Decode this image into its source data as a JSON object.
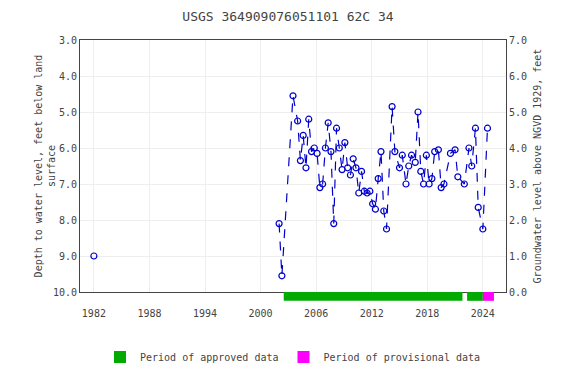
{
  "chart_data": {
    "type": "line",
    "title": "USGS 364909076051101 62C 34",
    "y_label": "Depth to water level, feet below land\nsurface",
    "y2_label": "Groundwater level above NGVD 1929, feet",
    "xlim": [
      1980.5,
      2026.5
    ],
    "xticks": [
      1982,
      1988,
      1994,
      2000,
      2006,
      2012,
      2018,
      2024
    ],
    "ylim": [
      10.0,
      3.0
    ],
    "yticks": [
      {
        "value": 3.0,
        "label": "3.0"
      },
      {
        "value": 4.0,
        "label": "4.0"
      },
      {
        "value": 5.0,
        "label": "5.0"
      },
      {
        "value": 6.0,
        "label": "6.0"
      },
      {
        "value": 7.0,
        "label": "7.0"
      },
      {
        "value": 8.0,
        "label": "8.0"
      },
      {
        "value": 9.0,
        "label": "9.0"
      },
      {
        "value": 10.0,
        "label": "10.0"
      }
    ],
    "y2lim": [
      0.0,
      7.0
    ],
    "y2ticks": [
      {
        "value": 0.0,
        "label": "0.0"
      },
      {
        "value": 1.0,
        "label": "1.0"
      },
      {
        "value": 2.0,
        "label": "2.0"
      },
      {
        "value": 3.0,
        "label": "3.0"
      },
      {
        "value": 4.0,
        "label": "4.0"
      },
      {
        "value": 5.0,
        "label": "5.0"
      },
      {
        "value": 6.0,
        "label": "6.0"
      },
      {
        "value": 7.0,
        "label": "7.0"
      }
    ],
    "grid": true,
    "legend": "bottom",
    "series": [
      {
        "color": "#0000CC",
        "line_style": "dashed",
        "marker": "open_circle",
        "x": [
          1982.0
        ],
        "values": [
          9.0
        ]
      },
      {
        "color": "#0000CC",
        "line_style": "dashed",
        "marker": "open_circle",
        "x": [
          2002.0,
          2002.3,
          2003.5,
          2004.0,
          2004.3,
          2004.6,
          2004.9,
          2005.2,
          2005.5,
          2005.8,
          2006.1,
          2006.4,
          2006.7,
          2007.0,
          2007.3,
          2007.6,
          2007.9,
          2008.2,
          2008.5,
          2008.8,
          2009.1,
          2009.4,
          2009.7,
          2010.0,
          2010.3,
          2010.6,
          2010.9,
          2011.2,
          2011.5,
          2011.8,
          2012.1,
          2012.4,
          2012.7,
          2013.0,
          2013.3,
          2013.6,
          2014.2,
          2014.5,
          2015.0,
          2015.3,
          2015.7,
          2016.0,
          2016.3,
          2016.7,
          2017.0,
          2017.3,
          2017.6,
          2017.9,
          2018.2,
          2018.5,
          2018.8,
          2019.2,
          2019.5,
          2019.8,
          2020.5,
          2021.0,
          2021.3,
          2022.0,
          2022.5,
          2022.8,
          2023.2,
          2023.5,
          2024.0,
          2024.5
        ],
        "values": [
          8.1,
          9.55,
          4.55,
          5.25,
          6.35,
          5.65,
          6.55,
          5.2,
          6.1,
          6.0,
          6.15,
          7.1,
          7.0,
          6.0,
          5.3,
          6.1,
          8.1,
          5.45,
          6.0,
          6.6,
          5.85,
          6.55,
          6.75,
          6.3,
          6.55,
          7.25,
          6.65,
          7.2,
          7.25,
          7.2,
          7.55,
          7.7,
          6.85,
          6.1,
          7.75,
          8.25,
          4.85,
          6.1,
          6.55,
          6.2,
          7.0,
          6.5,
          6.2,
          6.4,
          5.0,
          6.65,
          7.0,
          6.2,
          7.0,
          6.85,
          6.1,
          6.05,
          7.1,
          7.0,
          6.15,
          6.05,
          6.8,
          7.0,
          6.0,
          6.5,
          5.45,
          7.65,
          8.25,
          5.45
        ]
      }
    ],
    "periods": [
      {
        "name": "Period of approved data",
        "color": "#00AA00",
        "ranges": [
          [
            2002.5,
            2021.8
          ],
          [
            2022.3,
            2024.0
          ]
        ]
      },
      {
        "name": "Period of provisional data",
        "color": "#FF00FF",
        "ranges": [
          [
            2024.0,
            2025.2
          ]
        ]
      }
    ]
  }
}
